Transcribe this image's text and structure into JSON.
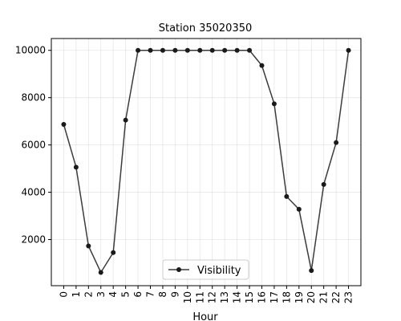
{
  "chart_data": {
    "type": "line",
    "title": "Station 35020350",
    "xlabel": "Hour",
    "ylabel": "",
    "x": [
      0,
      1,
      2,
      3,
      4,
      5,
      6,
      7,
      8,
      9,
      10,
      11,
      12,
      13,
      14,
      15,
      16,
      17,
      18,
      19,
      20,
      21,
      22,
      23
    ],
    "x_tick_labels": [
      "0",
      "1",
      "2",
      "3",
      "4",
      "5",
      "6",
      "7",
      "8",
      "9",
      "10",
      "11",
      "12",
      "13",
      "14",
      "15",
      "16",
      "17",
      "18",
      "19",
      "20",
      "21",
      "22",
      "23"
    ],
    "y_ticks": [
      2000,
      4000,
      6000,
      8000,
      10000
    ],
    "y_tick_labels": [
      "2000",
      "4000",
      "6000",
      "8000",
      "10000"
    ],
    "ylim": [
      50,
      10500
    ],
    "xlim": [
      -1,
      24
    ],
    "grid": true,
    "legend_position": "bottom-center",
    "series": [
      {
        "name": "Visibility",
        "color": "#1a1a1a",
        "marker": "circle",
        "values": [
          6870,
          5060,
          1730,
          610,
          1450,
          7050,
          10000,
          10000,
          10000,
          10000,
          10000,
          10000,
          10000,
          10000,
          10000,
          10000,
          9360,
          7740,
          3820,
          3280,
          690,
          4330,
          6100,
          10000
        ]
      }
    ]
  }
}
